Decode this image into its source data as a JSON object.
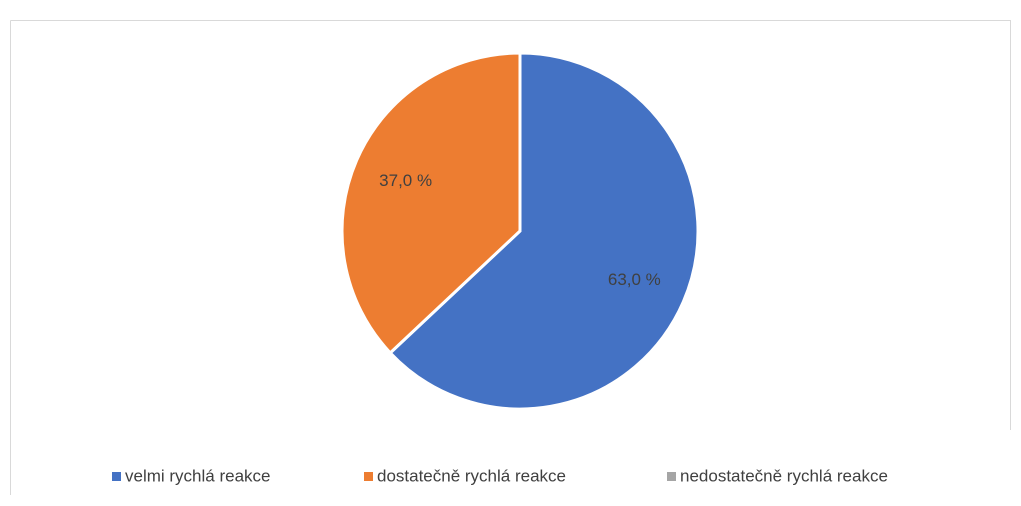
{
  "chart_data": {
    "type": "pie",
    "categories": [
      "velmi rychlá reakce",
      "dostatečně rychlá reakce",
      "nedostatečně rychlá reakce"
    ],
    "values": [
      63.0,
      37.0,
      0
    ],
    "value_labels": [
      "63,0 %",
      "37,0 %",
      null
    ],
    "colors": [
      "#4472c4",
      "#ed7d31",
      "#a5a5a5"
    ],
    "legend": "bottom"
  }
}
